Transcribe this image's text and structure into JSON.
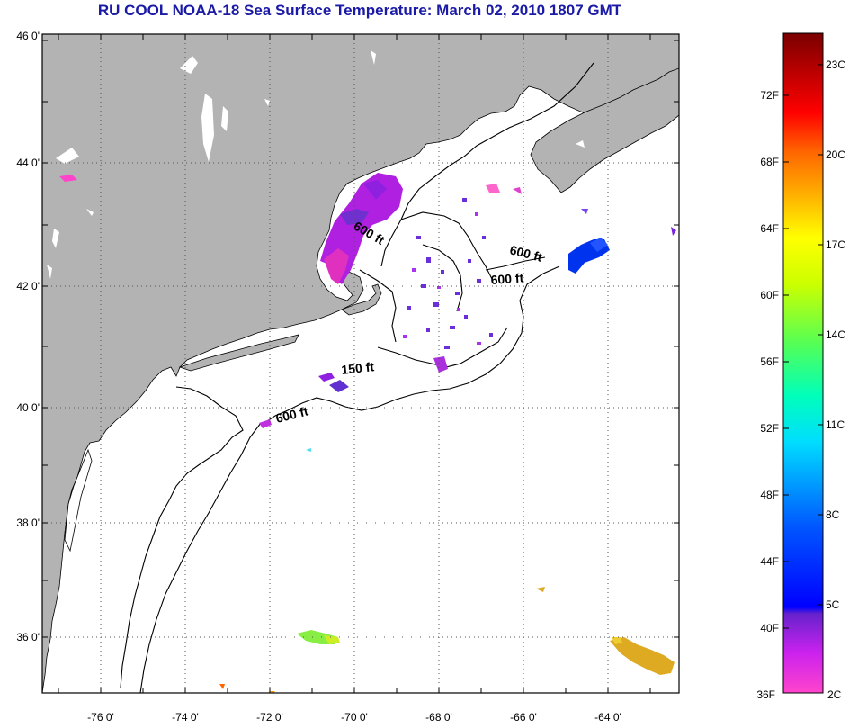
{
  "title": "RU COOL  NOAA-18  Sea Surface Temperature:  March 02, 2010 1807 GMT",
  "map": {
    "lon_ticks": [
      "-76 0'",
      "-74 0'",
      "-72 0'",
      "-70 0'",
      "-68 0'",
      "-66 0'",
      "-64 0'"
    ],
    "lat_ticks": [
      "46 0'",
      "44 0'",
      "42 0'",
      "40 0'",
      "38 0'",
      "36 0'"
    ],
    "contour_labels": [
      {
        "text": "600 ft",
        "id": "contour-600-gulf-of-maine"
      },
      {
        "text": "600 ft",
        "id": "contour-600-georges-east"
      },
      {
        "text": "600 ft",
        "id": "contour-600-georges-south"
      },
      {
        "text": "150 ft",
        "id": "contour-150-georges"
      },
      {
        "text": "600 ft",
        "id": "contour-600-shelf"
      }
    ],
    "colors": {
      "land": "#b3b3b3",
      "ocean": "#ffffff",
      "grid": "#555555"
    }
  },
  "colorbar": {
    "fahrenheit_labels": [
      "72F",
      "68F",
      "64F",
      "60F",
      "56F",
      "52F",
      "48F",
      "44F",
      "40F",
      "36F"
    ],
    "celsius_labels": [
      "23C",
      "20C",
      "17C",
      "14C",
      "11C",
      "8C",
      "5C",
      "2C"
    ],
    "range_f": [
      36,
      76
    ],
    "colors_low_to_high": [
      "#ff44cc",
      "#cc22ee",
      "#7722dd",
      "#0000ff",
      "#0066ff",
      "#00ccff",
      "#00ffcc",
      "#66ff44",
      "#ffff00",
      "#ffaa00",
      "#ff5500",
      "#ff0000",
      "#aa0000",
      "#800000"
    ]
  }
}
